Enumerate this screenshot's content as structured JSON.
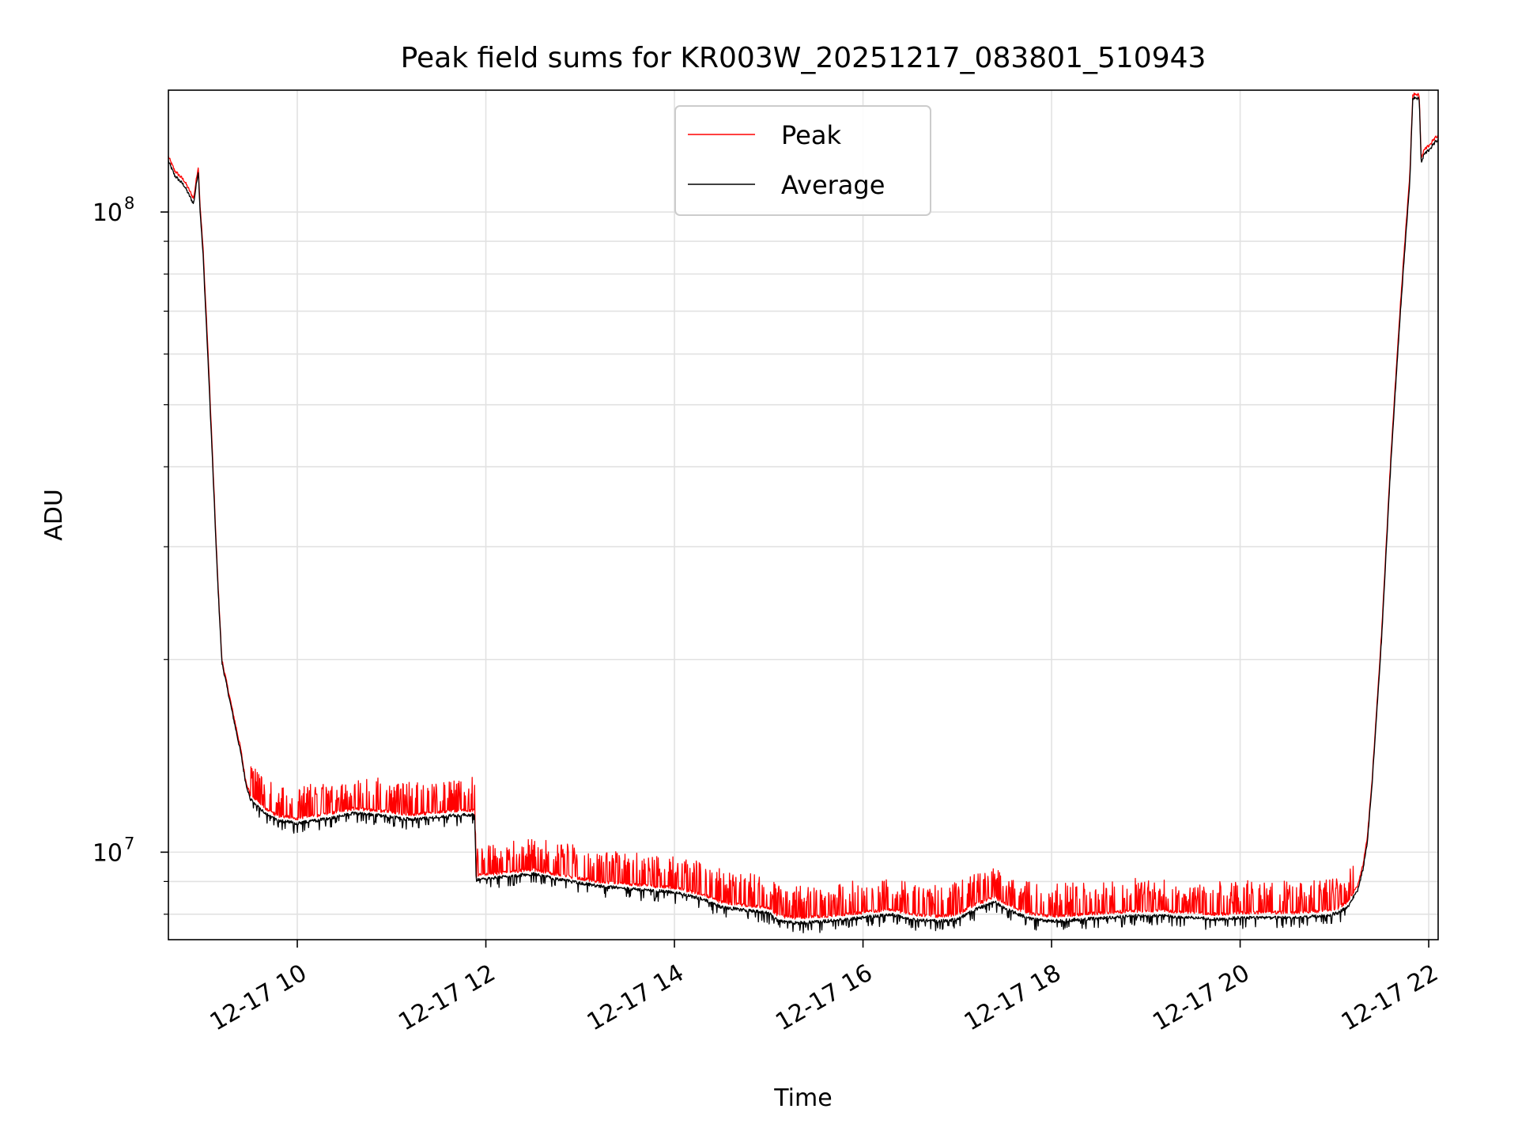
{
  "chart_data": {
    "type": "line",
    "title": "Peak field sums for KR003W_20251217_083801_510943",
    "xlabel": "Time",
    "ylabel": "ADU",
    "yscale": "log",
    "x_unit": "hours since 2025-12-17 00:00",
    "xlim": [
      8.633,
      22.1
    ],
    "ylim": [
      7300000,
      155000000
    ],
    "x_ticks": [
      {
        "value": 10,
        "label": "12-17 10"
      },
      {
        "value": 12,
        "label": "12-17 12"
      },
      {
        "value": 14,
        "label": "12-17 14"
      },
      {
        "value": 16,
        "label": "12-17 16"
      },
      {
        "value": 18,
        "label": "12-17 18"
      },
      {
        "value": 20,
        "label": "12-17 20"
      },
      {
        "value": 22,
        "label": "12-17 22"
      }
    ],
    "y_major_ticks": [
      {
        "value": 10000000,
        "base": "10",
        "exp": "7"
      },
      {
        "value": 100000000,
        "base": "10",
        "exp": "8"
      }
    ],
    "y_minor_ticks": [
      8000000,
      9000000,
      20000000,
      30000000,
      40000000,
      50000000,
      60000000,
      70000000,
      80000000,
      90000000
    ],
    "grid": true,
    "legend_position": "top-center",
    "series": [
      {
        "name": "Peak",
        "color": "#ff0000",
        "baseline": {
          "x": [
            8.633,
            8.7,
            8.8,
            8.9,
            8.95,
            8.97,
            9.0,
            9.05,
            9.1,
            9.15,
            9.2,
            9.3,
            9.4,
            9.45,
            9.5,
            9.55,
            9.6,
            9.7,
            9.8,
            10.0,
            10.2,
            10.4,
            10.6,
            10.8,
            11.0,
            11.2,
            11.4,
            11.6,
            11.88,
            11.9,
            12.2,
            12.5,
            12.8,
            13.2,
            13.6,
            14.0,
            14.3,
            14.5,
            14.8,
            15.0,
            15.1,
            15.3,
            15.6,
            16.0,
            16.3,
            16.5,
            16.8,
            17.0,
            17.2,
            17.4,
            17.6,
            17.8,
            18.0,
            18.3,
            18.6,
            18.9,
            19.2,
            19.5,
            19.8,
            20.0,
            20.3,
            20.6,
            20.9,
            21.05,
            21.15,
            21.25,
            21.3,
            21.35,
            21.4,
            21.5,
            21.6,
            21.7,
            21.8,
            21.83,
            21.86,
            21.9,
            21.92,
            21.95,
            22.0,
            22.1
          ],
          "y": [
            122000000,
            116000000,
            112000000,
            105000000,
            118000000,
            102000000,
            88000000,
            62000000,
            42000000,
            28000000,
            20000000,
            17000000,
            14500000,
            13000000,
            12300000,
            12100000,
            11900000,
            11600000,
            11400000,
            11300000,
            11400000,
            11550000,
            11700000,
            11650000,
            11550000,
            11450000,
            11500000,
            11600000,
            11650000,
            9200000,
            9300000,
            9400000,
            9200000,
            9000000,
            8900000,
            8800000,
            8600000,
            8350000,
            8250000,
            8200000,
            7950000,
            7900000,
            7950000,
            8050000,
            8150000,
            8000000,
            7950000,
            8000000,
            8300000,
            8500000,
            8200000,
            8000000,
            7950000,
            8000000,
            8050000,
            8100000,
            8100000,
            8050000,
            8000000,
            8050000,
            8050000,
            8050000,
            8100000,
            8200000,
            8400000,
            8900000,
            9500000,
            10600000,
            13000000,
            22000000,
            42000000,
            72000000,
            115000000,
            152000000,
            153000000,
            152000000,
            121000000,
            125000000,
            127000000,
            132000000
          ]
        }
      },
      {
        "name": "Average",
        "color": "#000000",
        "baseline": {
          "x": [
            8.633,
            8.7,
            8.8,
            8.9,
            8.95,
            8.97,
            9.0,
            9.05,
            9.1,
            9.15,
            9.2,
            9.3,
            9.4,
            9.45,
            9.5,
            9.55,
            9.6,
            9.7,
            9.8,
            10.0,
            10.2,
            10.4,
            10.6,
            10.8,
            11.0,
            11.2,
            11.4,
            11.6,
            11.88,
            11.9,
            12.2,
            12.5,
            12.8,
            13.2,
            13.6,
            14.0,
            14.3,
            14.5,
            14.8,
            15.0,
            15.1,
            15.3,
            15.6,
            16.0,
            16.3,
            16.5,
            16.8,
            17.0,
            17.2,
            17.4,
            17.6,
            17.8,
            18.0,
            18.3,
            18.6,
            18.9,
            19.2,
            19.5,
            19.8,
            20.0,
            20.3,
            20.6,
            20.9,
            21.05,
            21.15,
            21.25,
            21.3,
            21.35,
            21.4,
            21.5,
            21.6,
            21.7,
            21.8,
            21.83,
            21.86,
            21.9,
            21.92,
            21.95,
            22.0,
            22.1
          ],
          "y": [
            120000000,
            114000000,
            110000000,
            103000000,
            116000000,
            100000000,
            86000000,
            60000000,
            41000000,
            27500000,
            19800000,
            16800000,
            14300000,
            12900000,
            12100000,
            11900000,
            11700000,
            11400000,
            11200000,
            11100000,
            11200000,
            11350000,
            11500000,
            11450000,
            11350000,
            11250000,
            11300000,
            11400000,
            11450000,
            9050000,
            9150000,
            9250000,
            9050000,
            8850000,
            8750000,
            8650000,
            8450000,
            8200000,
            8100000,
            8050000,
            7800000,
            7750000,
            7800000,
            7900000,
            8000000,
            7850000,
            7800000,
            7850000,
            8150000,
            8350000,
            8050000,
            7850000,
            7800000,
            7850000,
            7900000,
            7950000,
            7950000,
            7900000,
            7850000,
            7900000,
            7900000,
            7900000,
            7950000,
            8050000,
            8250000,
            8750000,
            9350000,
            10400000,
            12800000,
            21500000,
            41000000,
            70000000,
            112000000,
            150000000,
            151000000,
            150000000,
            119000000,
            123000000,
            125000000,
            130000000
          ]
        }
      }
    ]
  }
}
